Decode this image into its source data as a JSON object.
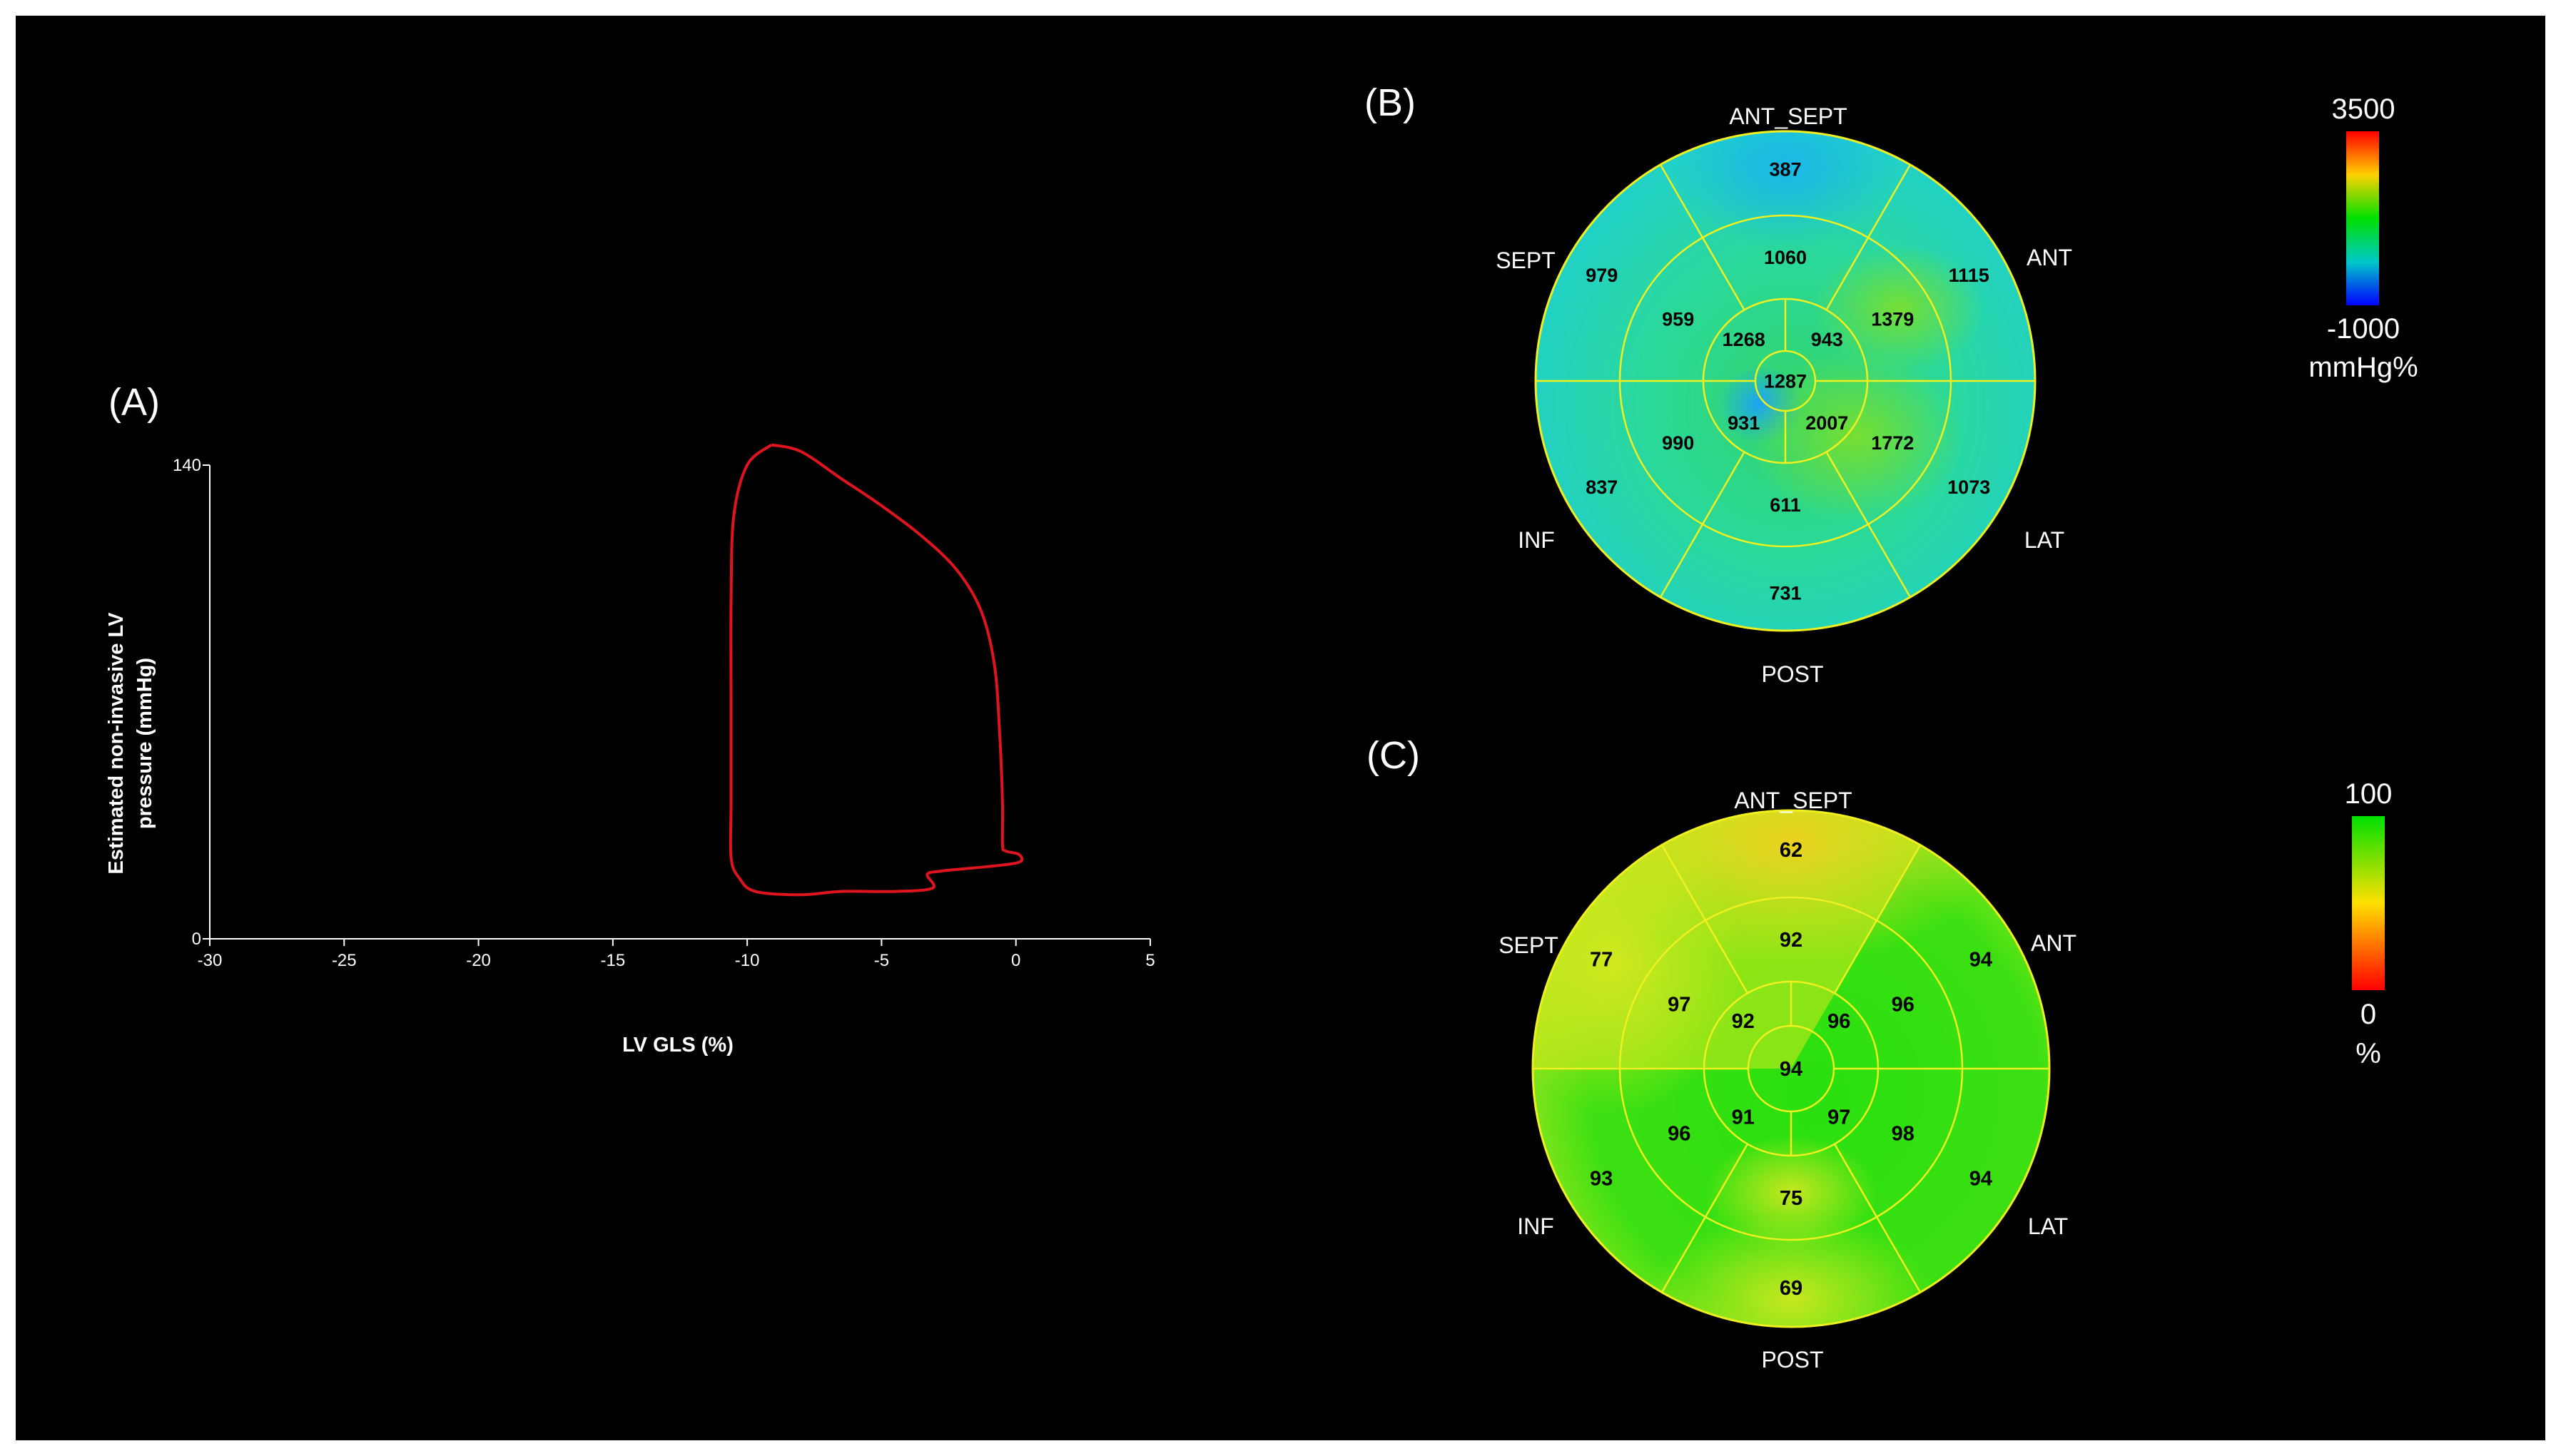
{
  "colors": {
    "background": "#000000",
    "frame": "#ffffff",
    "loop": "#e0141e",
    "ring_lines": "#f0f020",
    "text": "#ffffff",
    "segment_text": "#000000"
  },
  "panel_a": {
    "label": "(A)",
    "ylabel_line1": "Estimated non-invasive LV",
    "ylabel_line2": "pressure (mmHg)",
    "xlabel": "LV GLS (%)"
  },
  "panel_b": {
    "label": "(B)",
    "wall_labels": {
      "top": "ANT_SEPT",
      "upper_left": "SEPT",
      "upper_right": "ANT",
      "lower_left": "INF",
      "lower_right": "LAT",
      "bottom": "POST"
    },
    "colorbar": {
      "max": "3500",
      "min": "-1000",
      "unit": "mmHg%",
      "gradient": [
        "#ff0000",
        "#ffd000",
        "#00e000",
        "#00c8c8",
        "#0000ff"
      ]
    }
  },
  "panel_c": {
    "label": "(C)",
    "wall_labels": {
      "top": "ANT_SEPT",
      "upper_left": "SEPT",
      "upper_right": "ANT",
      "lower_left": "INF",
      "lower_right": "LAT",
      "bottom": "POST"
    },
    "colorbar": {
      "max": "100",
      "min": "0",
      "unit": "%",
      "gradient": [
        "#00e000",
        "#ffe000",
        "#ff0000"
      ]
    }
  },
  "chart_data": [
    {
      "type": "line",
      "panel": "A",
      "xlabel": "LV GLS (%)",
      "ylabel": "Estimated non-invasive LV pressure (mmHg)",
      "xlim": [
        -30,
        5
      ],
      "ylim": [
        0,
        140
      ],
      "x_ticks": [
        "-30",
        "-25",
        "-20",
        "-15",
        "-10",
        "-5",
        "0",
        "5"
      ],
      "y_ticks": [
        "0",
        "140"
      ],
      "series": [
        {
          "x": [
            -9.1,
            -8.0,
            -6.5,
            -5.0,
            -3.5,
            -2.2,
            -1.3,
            -0.8,
            -0.6,
            -0.5,
            -0.5,
            -0.4,
            0.1,
            0.2,
            -0.3,
            -1.5,
            -2.8,
            -3.3,
            -3.1,
            -4.5,
            -6.5,
            -8.0,
            -9.7,
            -10.3,
            -10.6,
            -10.6,
            -10.6,
            -10.6,
            -10.5,
            -10.0,
            -9.1
          ],
          "y": [
            146,
            144,
            136,
            128,
            119,
            109,
            97,
            81,
            60,
            40,
            28,
            26,
            25,
            23,
            22,
            21,
            20,
            19,
            15,
            14,
            14,
            13,
            14,
            18,
            24,
            40,
            70,
            100,
            125,
            140,
            146
          ]
        }
      ]
    },
    {
      "type": "heatmap",
      "panel": "B",
      "layout": "bullseye",
      "unit": "mmHg%",
      "scale": [
        -1000,
        3500
      ],
      "segments": {
        "basal": {
          "ANT_SEPT": 387,
          "ANT": 1115,
          "LAT": 1073,
          "POST": 731,
          "INF": 837,
          "SEPT": 979
        },
        "mid": {
          "ANT_SEPT": 1060,
          "ANT": 1379,
          "LAT": 1772,
          "POST": 611,
          "INF": 990,
          "SEPT": 959
        },
        "apical": {
          "ANT": 943,
          "LAT": 2007,
          "INF": 931,
          "SEPT": 1268
        },
        "apex": 1287
      }
    },
    {
      "type": "heatmap",
      "panel": "C",
      "layout": "bullseye",
      "unit": "%",
      "scale": [
        0,
        100
      ],
      "segments": {
        "basal": {
          "ANT_SEPT": 62,
          "ANT": 94,
          "LAT": 94,
          "POST": 69,
          "INF": 93,
          "SEPT": 77
        },
        "mid": {
          "ANT_SEPT": 92,
          "ANT": 96,
          "LAT": 98,
          "POST": 75,
          "INF": 96,
          "SEPT": 97
        },
        "apical": {
          "ANT": 96,
          "LAT": 97,
          "INF": 91,
          "SEPT": 92
        },
        "apex": 94
      }
    }
  ]
}
